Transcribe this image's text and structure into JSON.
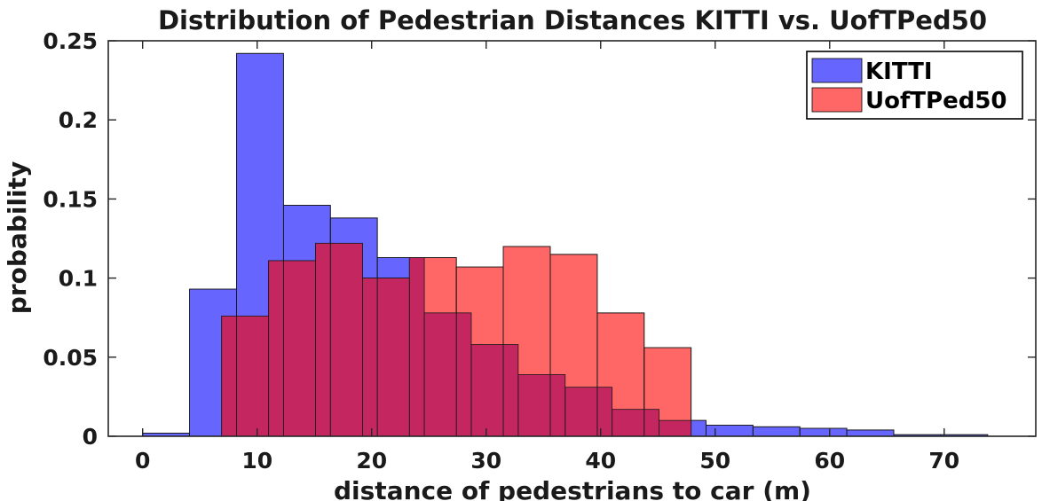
{
  "chart_data": {
    "type": "bar",
    "title": "Distribution of Pedestrian Distances KITTI vs. UofTPed50",
    "xlabel": "distance of pedestrians to car (m)",
    "ylabel": "probability",
    "xlim": [
      -3,
      78
    ],
    "ylim": [
      0,
      0.25
    ],
    "xticks": [
      0,
      10,
      20,
      30,
      40,
      50,
      60,
      70
    ],
    "yticks": [
      0,
      0.05,
      0.1,
      0.15,
      0.2,
      0.25
    ],
    "ytick_labels": [
      "0",
      "0.05",
      "0.1",
      "0.15",
      "0.2",
      "0.25"
    ],
    "grid": false,
    "legend_position": "top-right",
    "series": [
      {
        "name": "KITTI",
        "color": "#6666ff",
        "bins": [
          {
            "x0": 0.0,
            "x1": 4.1,
            "value": 0.002
          },
          {
            "x0": 4.1,
            "x1": 8.2,
            "value": 0.093
          },
          {
            "x0": 8.2,
            "x1": 12.3,
            "value": 0.242
          },
          {
            "x0": 12.3,
            "x1": 16.4,
            "value": 0.146
          },
          {
            "x0": 16.4,
            "x1": 20.5,
            "value": 0.138
          },
          {
            "x0": 20.5,
            "x1": 24.6,
            "value": 0.113
          },
          {
            "x0": 24.6,
            "x1": 28.7,
            "value": 0.078
          },
          {
            "x0": 28.7,
            "x1": 32.8,
            "value": 0.058
          },
          {
            "x0": 32.8,
            "x1": 36.9,
            "value": 0.039
          },
          {
            "x0": 36.9,
            "x1": 41.0,
            "value": 0.031
          },
          {
            "x0": 41.0,
            "x1": 45.1,
            "value": 0.017
          },
          {
            "x0": 45.1,
            "x1": 49.2,
            "value": 0.01
          },
          {
            "x0": 49.2,
            "x1": 53.3,
            "value": 0.007
          },
          {
            "x0": 53.3,
            "x1": 57.4,
            "value": 0.006
          },
          {
            "x0": 57.4,
            "x1": 61.5,
            "value": 0.005
          },
          {
            "x0": 61.5,
            "x1": 65.6,
            "value": 0.004
          },
          {
            "x0": 65.6,
            "x1": 69.7,
            "value": 0.001
          },
          {
            "x0": 69.7,
            "x1": 73.8,
            "value": 0.001
          }
        ]
      },
      {
        "name": "UofTPed50",
        "color": "#ff6666",
        "bins": [
          {
            "x0": 6.9,
            "x1": 11.0,
            "value": 0.076
          },
          {
            "x0": 11.0,
            "x1": 15.1,
            "value": 0.111
          },
          {
            "x0": 15.1,
            "x1": 19.2,
            "value": 0.122
          },
          {
            "x0": 19.2,
            "x1": 23.3,
            "value": 0.1
          },
          {
            "x0": 23.3,
            "x1": 27.4,
            "value": 0.113
          },
          {
            "x0": 27.4,
            "x1": 31.5,
            "value": 0.107
          },
          {
            "x0": 31.5,
            "x1": 35.6,
            "value": 0.12
          },
          {
            "x0": 35.6,
            "x1": 39.7,
            "value": 0.115
          },
          {
            "x0": 39.7,
            "x1": 43.8,
            "value": 0.078
          },
          {
            "x0": 43.8,
            "x1": 47.9,
            "value": 0.056
          }
        ]
      }
    ]
  }
}
